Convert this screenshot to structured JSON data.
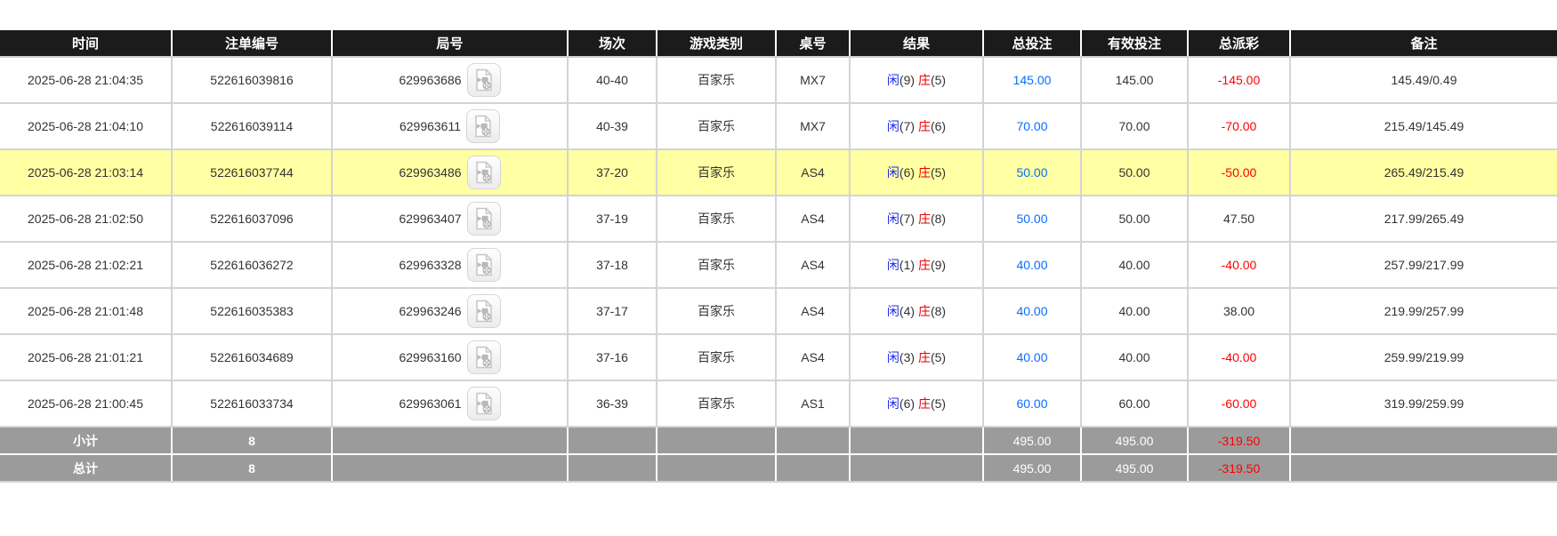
{
  "table": {
    "columns": [
      {
        "label": "时间"
      },
      {
        "label": "注单编号"
      },
      {
        "label": "局号"
      },
      {
        "label": "场次"
      },
      {
        "label": "游戏类别"
      },
      {
        "label": "桌号"
      },
      {
        "label": "结果"
      },
      {
        "label": "总投注"
      },
      {
        "label": "有效投注"
      },
      {
        "label": "总派彩"
      },
      {
        "label": "备注"
      }
    ],
    "result_labels": {
      "player": "闲",
      "banker": "庄"
    },
    "rows": [
      {
        "time": "2025-06-28 21:04:35",
        "bet_id": "522616039816",
        "round_id": "629963686",
        "session": "40-40",
        "game_type": "百家乐",
        "table_no": "MX7",
        "player_score": 9,
        "banker_score": 5,
        "total_bet": "145.00",
        "valid_bet": "145.00",
        "total_payout": "-145.00",
        "remark": "145.49/0.49",
        "highlighted": false
      },
      {
        "time": "2025-06-28 21:04:10",
        "bet_id": "522616039114",
        "round_id": "629963611",
        "session": "40-39",
        "game_type": "百家乐",
        "table_no": "MX7",
        "player_score": 7,
        "banker_score": 6,
        "total_bet": "70.00",
        "valid_bet": "70.00",
        "total_payout": "-70.00",
        "remark": "215.49/145.49",
        "highlighted": false
      },
      {
        "time": "2025-06-28 21:03:14",
        "bet_id": "522616037744",
        "round_id": "629963486",
        "session": "37-20",
        "game_type": "百家乐",
        "table_no": "AS4",
        "player_score": 6,
        "banker_score": 5,
        "total_bet": "50.00",
        "valid_bet": "50.00",
        "total_payout": "-50.00",
        "remark": "265.49/215.49",
        "highlighted": true
      },
      {
        "time": "2025-06-28 21:02:50",
        "bet_id": "522616037096",
        "round_id": "629963407",
        "session": "37-19",
        "game_type": "百家乐",
        "table_no": "AS4",
        "player_score": 7,
        "banker_score": 8,
        "total_bet": "50.00",
        "valid_bet": "50.00",
        "total_payout": "47.50",
        "remark": "217.99/265.49",
        "highlighted": false
      },
      {
        "time": "2025-06-28 21:02:21",
        "bet_id": "522616036272",
        "round_id": "629963328",
        "session": "37-18",
        "game_type": "百家乐",
        "table_no": "AS4",
        "player_score": 1,
        "banker_score": 9,
        "total_bet": "40.00",
        "valid_bet": "40.00",
        "total_payout": "-40.00",
        "remark": "257.99/217.99",
        "highlighted": false
      },
      {
        "time": "2025-06-28 21:01:48",
        "bet_id": "522616035383",
        "round_id": "629963246",
        "session": "37-17",
        "game_type": "百家乐",
        "table_no": "AS4",
        "player_score": 4,
        "banker_score": 8,
        "total_bet": "40.00",
        "valid_bet": "40.00",
        "total_payout": "38.00",
        "remark": "219.99/257.99",
        "highlighted": false
      },
      {
        "time": "2025-06-28 21:01:21",
        "bet_id": "522616034689",
        "round_id": "629963160",
        "session": "37-16",
        "game_type": "百家乐",
        "table_no": "AS4",
        "player_score": 3,
        "banker_score": 5,
        "total_bet": "40.00",
        "valid_bet": "40.00",
        "total_payout": "-40.00",
        "remark": "259.99/219.99",
        "highlighted": false
      },
      {
        "time": "2025-06-28 21:00:45",
        "bet_id": "522616033734",
        "round_id": "629963061",
        "session": "36-39",
        "game_type": "百家乐",
        "table_no": "AS1",
        "player_score": 6,
        "banker_score": 5,
        "total_bet": "60.00",
        "valid_bet": "60.00",
        "total_payout": "-60.00",
        "remark": "319.99/259.99",
        "highlighted": false
      }
    ],
    "subtotal": {
      "label": "小计",
      "count": "8",
      "total_bet": "495.00",
      "valid_bet": "495.00",
      "total_payout": "-319.50"
    },
    "grand_total": {
      "label": "总计",
      "count": "8",
      "total_bet": "495.00",
      "valid_bet": "495.00",
      "total_payout": "-319.50"
    }
  },
  "icons": {
    "round_video": "video-replay-icon"
  },
  "colors": {
    "header_bg": "#1b1b1b",
    "row_highlight": "#ffffa3",
    "summary_bg": "#9b9b9b",
    "bet_amount_blue": "#0a6cff",
    "player_blue": "#1c2bec",
    "banker_red": "#e60000",
    "negative_red": "#ff0000"
  }
}
